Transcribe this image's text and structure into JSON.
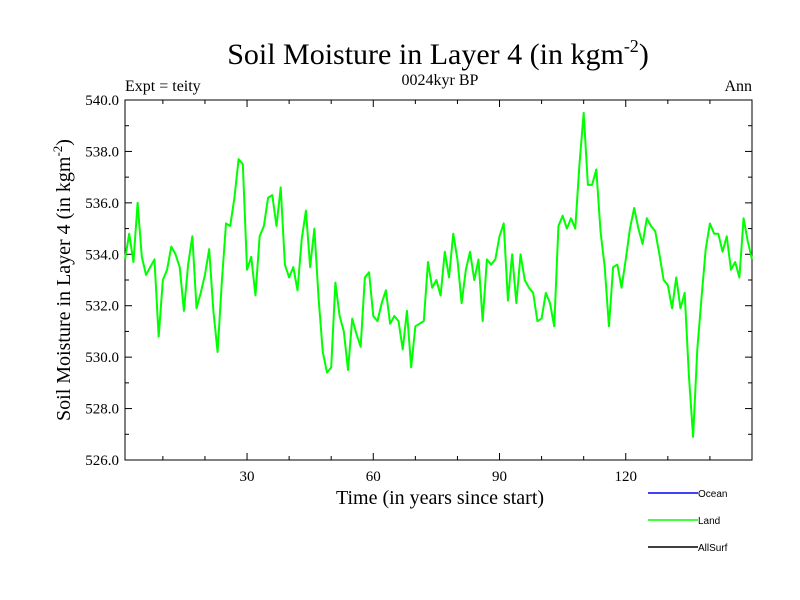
{
  "chart_data": {
    "type": "line",
    "title_main": "Soil Moisture in Layer 4 (in kgm",
    "title_sup": "-2",
    "title_close": ")",
    "subtitle": "0024kyr BP",
    "left_label": "Expt = teity",
    "right_label": "Ann",
    "xlabel": "Time (in years since start)",
    "ylabel_main": "Soil Moisture in Layer 4 (in kgm",
    "ylabel_sup": "-2",
    "ylabel_close": ")",
    "xlim": [
      1,
      150
    ],
    "ylim": [
      526.0,
      540.0
    ],
    "x_ticks": [
      30,
      60,
      90,
      120
    ],
    "x_tick_labels": [
      "30",
      "60",
      "90",
      "120"
    ],
    "y_ticks": [
      526,
      528,
      530,
      532,
      534,
      536,
      538,
      540
    ],
    "y_tick_labels": [
      "526.0",
      "528.0",
      "530.0",
      "532.0",
      "534.0",
      "536.0",
      "538.0",
      "540.0"
    ],
    "legend": [
      {
        "name": "Ocean",
        "color": "#0000ff"
      },
      {
        "name": "Land",
        "color": "#00ff00"
      },
      {
        "name": "AllSurf",
        "color": "#000000"
      }
    ],
    "series": [
      {
        "name": "Land",
        "color": "#00ff00",
        "x": [
          1,
          2,
          3,
          4,
          5,
          6,
          7,
          8,
          9,
          10,
          11,
          12,
          13,
          14,
          15,
          16,
          17,
          18,
          19,
          20,
          21,
          22,
          23,
          24,
          25,
          26,
          27,
          28,
          29,
          30,
          31,
          32,
          33,
          34,
          35,
          36,
          37,
          38,
          39,
          40,
          41,
          42,
          43,
          44,
          45,
          46,
          47,
          48,
          49,
          50,
          51,
          52,
          53,
          54,
          55,
          56,
          57,
          58,
          59,
          60,
          61,
          62,
          63,
          64,
          65,
          66,
          67,
          68,
          69,
          70,
          71,
          72,
          73,
          74,
          75,
          76,
          77,
          78,
          79,
          80,
          81,
          82,
          83,
          84,
          85,
          86,
          87,
          88,
          89,
          90,
          91,
          92,
          93,
          94,
          95,
          96,
          97,
          98,
          99,
          100,
          101,
          102,
          103,
          104,
          105,
          106,
          107,
          108,
          109,
          110,
          111,
          112,
          113,
          114,
          115,
          116,
          117,
          118,
          119,
          120,
          121,
          122,
          123,
          124,
          125,
          126,
          127,
          128,
          129,
          130,
          131,
          132,
          133,
          134,
          135,
          136,
          137,
          138,
          139,
          140,
          141,
          142,
          143,
          144,
          145,
          146,
          147,
          148,
          149,
          150
        ],
        "values": [
          533.8,
          534.8,
          533.7,
          536.0,
          533.9,
          533.2,
          533.5,
          533.8,
          530.8,
          533.0,
          533.4,
          534.3,
          534.0,
          533.5,
          531.8,
          533.6,
          534.7,
          531.9,
          532.5,
          533.2,
          534.2,
          531.8,
          530.2,
          532.9,
          535.2,
          535.1,
          536.2,
          537.7,
          537.5,
          533.4,
          533.9,
          532.4,
          534.7,
          535.1,
          536.2,
          536.3,
          535.1,
          536.6,
          533.6,
          533.1,
          533.5,
          532.6,
          534.6,
          535.7,
          533.5,
          535.0,
          532.3,
          530.2,
          529.4,
          529.6,
          532.9,
          531.6,
          531.0,
          529.5,
          531.5,
          530.9,
          530.4,
          533.1,
          533.3,
          531.6,
          531.4,
          532.1,
          532.6,
          531.3,
          531.6,
          531.4,
          530.3,
          531.8,
          529.6,
          531.2,
          531.3,
          531.4,
          533.7,
          532.7,
          533.0,
          532.4,
          534.1,
          533.1,
          534.8,
          533.8,
          532.1,
          533.4,
          534.1,
          533.0,
          533.8,
          531.4,
          533.8,
          533.6,
          533.8,
          534.7,
          535.2,
          532.2,
          534.0,
          532.1,
          534.0,
          533.0,
          532.7,
          532.5,
          531.4,
          531.5,
          532.5,
          532.1,
          531.2,
          535.1,
          535.5,
          535.0,
          535.4,
          535.0,
          537.5,
          539.5,
          536.7,
          536.7,
          537.3,
          534.9,
          533.5,
          531.2,
          533.5,
          533.6,
          532.7,
          533.8,
          535.0,
          535.8,
          535.0,
          534.4,
          535.4,
          535.1,
          534.9,
          534.0,
          533.0,
          532.8,
          531.9,
          533.1,
          531.9,
          532.5,
          529.3,
          526.9,
          530.3,
          532.3,
          534.2,
          535.2,
          534.8,
          534.8,
          534.1,
          534.7,
          533.4,
          533.7,
          533.1,
          535.4,
          534.5,
          533.8
        ]
      }
    ]
  }
}
